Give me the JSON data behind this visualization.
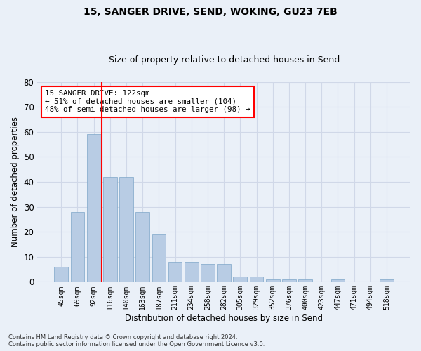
{
  "title": "15, SANGER DRIVE, SEND, WOKING, GU23 7EB",
  "subtitle": "Size of property relative to detached houses in Send",
  "xlabel": "Distribution of detached houses by size in Send",
  "ylabel": "Number of detached properties",
  "categories": [
    "45sqm",
    "69sqm",
    "92sqm",
    "116sqm",
    "140sqm",
    "163sqm",
    "187sqm",
    "211sqm",
    "234sqm",
    "258sqm",
    "282sqm",
    "305sqm",
    "329sqm",
    "352sqm",
    "376sqm",
    "400sqm",
    "423sqm",
    "447sqm",
    "471sqm",
    "494sqm",
    "518sqm"
  ],
  "values": [
    6,
    28,
    59,
    42,
    42,
    28,
    19,
    8,
    8,
    7,
    7,
    2,
    2,
    1,
    1,
    1,
    0,
    1,
    0,
    0,
    1
  ],
  "bar_color": "#b8cce4",
  "bar_edge_color": "#7da6c8",
  "grid_color": "#d0d8e8",
  "vline_color": "red",
  "vline_x": 2.5,
  "annotation_text": "15 SANGER DRIVE: 122sqm\n← 51% of detached houses are smaller (104)\n48% of semi-detached houses are larger (98) →",
  "annotation_box_color": "white",
  "annotation_box_edge": "red",
  "ylim": [
    0,
    80
  ],
  "yticks": [
    0,
    10,
    20,
    30,
    40,
    50,
    60,
    70,
    80
  ],
  "footer": "Contains HM Land Registry data © Crown copyright and database right 2024.\nContains public sector information licensed under the Open Government Licence v3.0.",
  "bg_color": "#eaf0f8",
  "plot_bg_color": "#eaf0f8",
  "title_fontsize": 10,
  "subtitle_fontsize": 9
}
